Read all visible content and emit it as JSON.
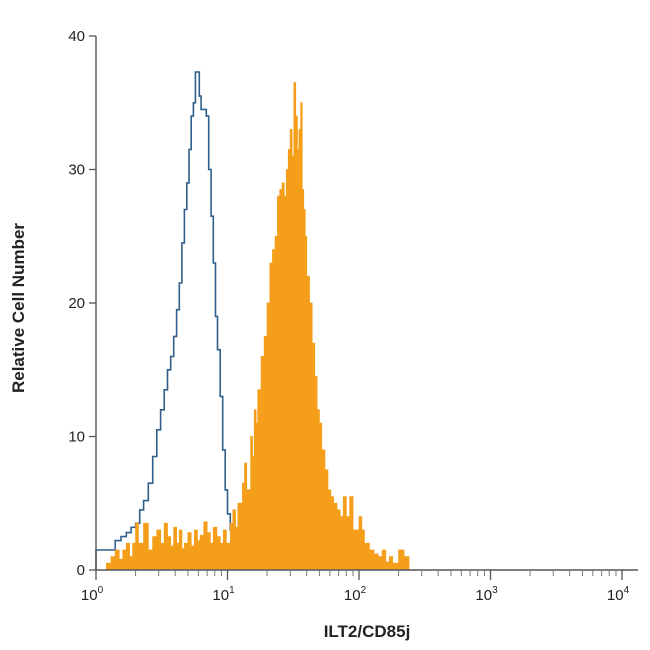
{
  "chart_data": {
    "type": "area",
    "title": "",
    "xlabel": "ILT2/CD85j",
    "ylabel": "Relative Cell Number",
    "xscale": "log",
    "xlim": [
      1,
      10000
    ],
    "ylim": [
      0,
      40
    ],
    "grid": false,
    "legend": "none",
    "x_ticks": [
      {
        "value": 1,
        "base": "10",
        "exp": "0"
      },
      {
        "value": 10,
        "base": "10",
        "exp": "1"
      },
      {
        "value": 100,
        "base": "10",
        "exp": "2"
      },
      {
        "value": 1000,
        "base": "10",
        "exp": "3"
      },
      {
        "value": 10000,
        "base": "10",
        "exp": "4"
      }
    ],
    "y_ticks": [
      0,
      10,
      20,
      30,
      40
    ],
    "series": [
      {
        "style": "outline",
        "color": "#2f5f8a",
        "x": [
          1,
          1.25,
          1.4,
          1.55,
          1.7,
          1.85,
          2.0,
          2.15,
          2.3,
          2.5,
          2.7,
          2.9,
          3.1,
          3.3,
          3.5,
          3.7,
          3.9,
          4.1,
          4.3,
          4.5,
          4.7,
          4.9,
          5.1,
          5.3,
          5.5,
          5.7,
          5.9,
          6.1,
          6.3,
          6.6,
          6.9,
          7.2,
          7.5,
          7.8,
          8.1,
          8.4,
          8.8,
          9.2,
          9.6,
          10.0,
          10.5,
          11.0,
          11.5,
          12.0,
          13.0,
          14.0,
          15.0,
          17.0,
          20.0,
          25.0,
          30.0,
          40.0,
          50.0,
          60.0,
          70.0,
          80.0,
          90.0,
          95.0,
          100.0,
          105.0,
          110.0,
          115.0,
          120.0
        ],
        "y": [
          1.5,
          1.5,
          2.2,
          2.5,
          2.8,
          3.2,
          3.5,
          4.5,
          5.2,
          6.5,
          8.5,
          10.5,
          12.0,
          13.5,
          15.0,
          16.0,
          17.5,
          19.5,
          21.5,
          24.5,
          27.0,
          29.0,
          31.5,
          34.0,
          35.0,
          37.3,
          37.3,
          35.5,
          34.5,
          34.5,
          34.0,
          30.0,
          26.5,
          23.0,
          19.0,
          16.5,
          13.0,
          9.0,
          6.0,
          4.2,
          3.0,
          2.5,
          2.0,
          1.8,
          1.6,
          1.6,
          1.2,
          1.0,
          0.8,
          0.8,
          0.8,
          0.8,
          0.8,
          0.8,
          0.8,
          0.8,
          0.8,
          1.5,
          1.5,
          0.8,
          0.8,
          0.3,
          0
        ]
      },
      {
        "style": "filled",
        "color": "#f59e1a",
        "x": [
          1,
          1.2,
          1.3,
          1.4,
          1.5,
          1.6,
          1.7,
          1.8,
          1.9,
          2.0,
          2.1,
          2.3,
          2.5,
          2.7,
          2.9,
          3.1,
          3.3,
          3.5,
          3.7,
          3.9,
          4.1,
          4.3,
          4.5,
          4.7,
          5.0,
          5.3,
          5.6,
          5.9,
          6.2,
          6.6,
          7.0,
          7.4,
          7.8,
          8.3,
          8.8,
          9.3,
          9.8,
          10.5,
          11.0,
          11.5,
          12.0,
          13.0,
          13.5,
          14.0,
          15.0,
          15.5,
          16.0,
          16.5,
          17.0,
          18.0,
          19.0,
          20.0,
          21.0,
          22.0,
          23.0,
          24.0,
          25.0,
          26.0,
          27.0,
          28.0,
          29.0,
          30.0,
          31.0,
          32.0,
          33.0,
          34.0,
          35.0,
          36.0,
          37.0,
          38.0,
          39.0,
          40.0,
          42.0,
          44.0,
          46.0,
          48.0,
          50.0,
          52.0,
          55.0,
          58.0,
          61.0,
          64.0,
          68.0,
          72.0,
          76.0,
          80.0,
          85.0,
          90.0,
          95.0,
          100.0,
          105.0,
          110.0,
          120.0,
          130.0,
          140.0,
          150.0,
          160.0,
          170.0,
          180.0,
          200.0,
          220.0,
          240.0
        ],
        "y": [
          0,
          0.5,
          1.0,
          1.5,
          0.8,
          1.5,
          2.0,
          1.0,
          2.0,
          3.5,
          2.0,
          3.5,
          1.5,
          2.5,
          3.0,
          2.0,
          3.5,
          2.5,
          1.8,
          3.2,
          2.0,
          3.0,
          1.6,
          2.0,
          2.8,
          1.8,
          3.0,
          2.2,
          2.6,
          3.6,
          2.8,
          2.0,
          3.2,
          2.5,
          2.0,
          3.0,
          2.0,
          3.5,
          4.5,
          3.2,
          5.0,
          6.5,
          8.0,
          6.0,
          10.0,
          8.5,
          12.0,
          11.0,
          13.5,
          16.0,
          17.5,
          20.0,
          23.0,
          24.0,
          25.0,
          28.0,
          28.5,
          29.0,
          28.0,
          30.0,
          31.5,
          33.0,
          31.0,
          36.5,
          34.0,
          31.5,
          33.0,
          35.0,
          28.5,
          27.0,
          25.0,
          22.0,
          20.0,
          17.0,
          14.5,
          12.0,
          11.0,
          9.0,
          7.5,
          6.0,
          5.5,
          5.0,
          4.5,
          4.0,
          5.5,
          4.0,
          5.5,
          3.0,
          3.0,
          4.0,
          3.0,
          2.0,
          1.5,
          1.2,
          1.0,
          1.5,
          0.6,
          1.0,
          0.5,
          1.5,
          1.0,
          0
        ]
      }
    ]
  }
}
